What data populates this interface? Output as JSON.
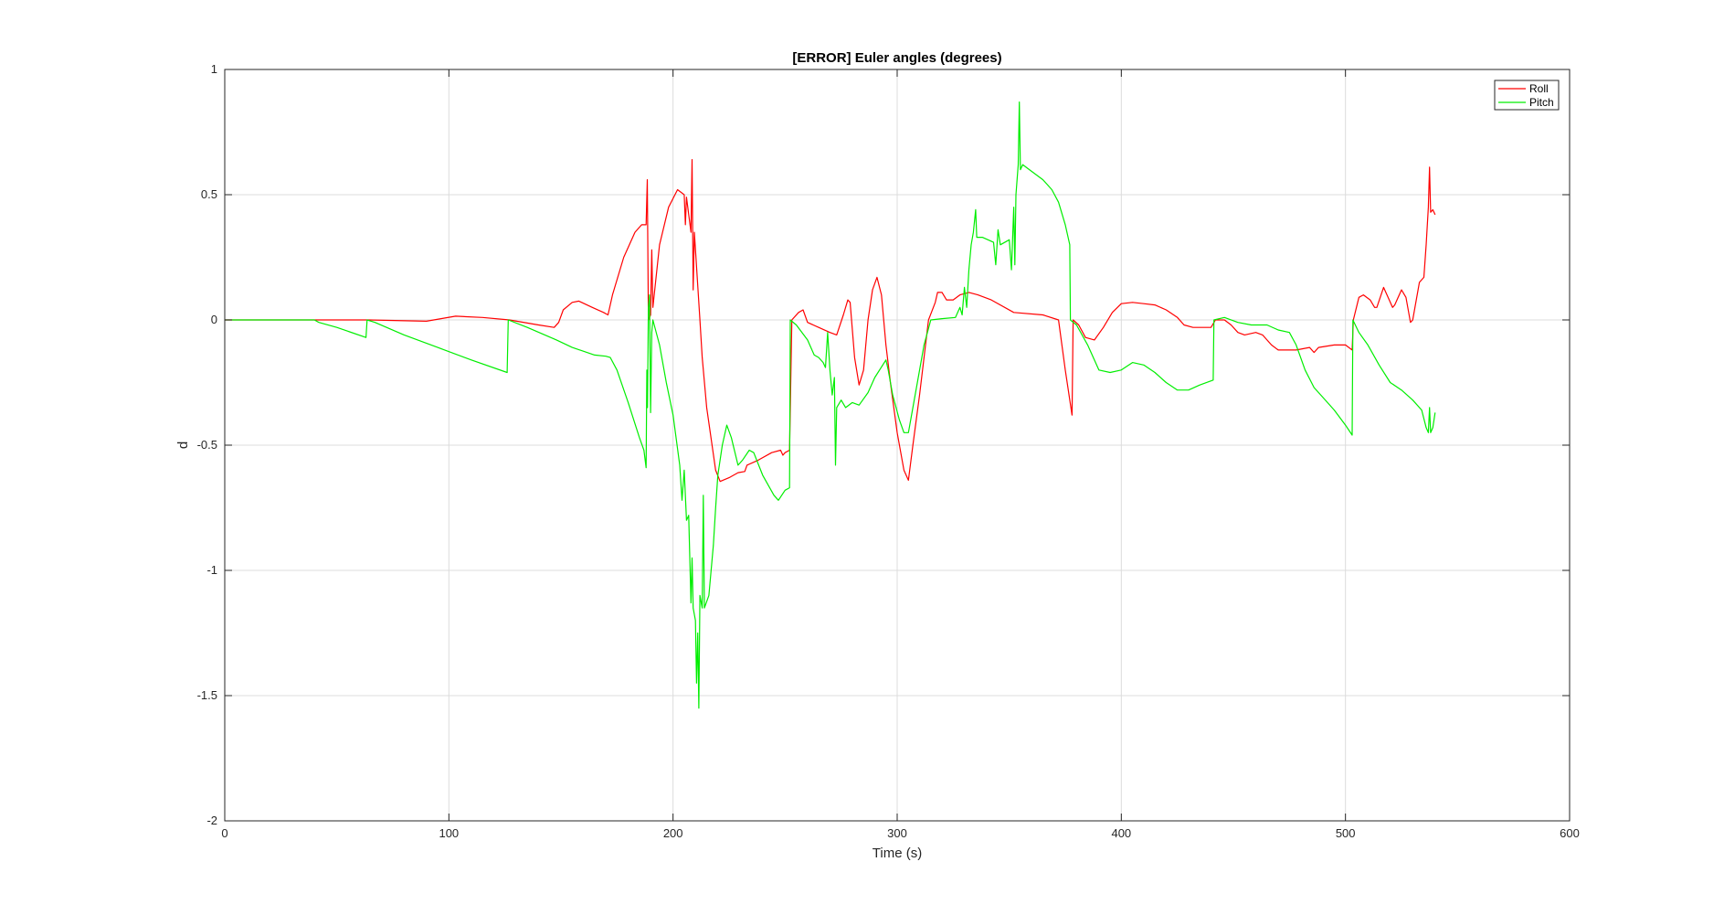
{
  "chart_data": {
    "type": "line",
    "title": "[ERROR] Euler angles (degrees)",
    "xlabel": "Time (s)",
    "ylabel": "d",
    "xlim": [
      0,
      600
    ],
    "ylim": [
      -2,
      1
    ],
    "xticks": [
      0,
      100,
      200,
      300,
      400,
      500,
      600
    ],
    "xtick_labels": [
      "0",
      "100",
      "200",
      "300",
      "400",
      "500",
      "600"
    ],
    "yticks": [
      1,
      0.5,
      0,
      -0.5,
      -1,
      -1.5,
      -2
    ],
    "ytick_labels": [
      "1",
      "0.5",
      "0",
      "-0.5",
      "-1",
      "-1.5",
      "-2"
    ],
    "grid": true,
    "legend_position": "top-right",
    "series": [
      {
        "name": "Roll",
        "color": "#ff0000",
        "points": [
          [
            0,
            0
          ],
          [
            40,
            0
          ],
          [
            64,
            0
          ],
          [
            90,
            -0.005
          ],
          [
            103,
            0.015
          ],
          [
            115,
            0.01
          ],
          [
            127,
            0
          ],
          [
            140,
            -0.02
          ],
          [
            147,
            -0.03
          ],
          [
            149,
            -0.01
          ],
          [
            151,
            0.04
          ],
          [
            155,
            0.07
          ],
          [
            158,
            0.075
          ],
          [
            164,
            0.05
          ],
          [
            169,
            0.03
          ],
          [
            171,
            0.02
          ],
          [
            173,
            0.1
          ],
          [
            178,
            0.25
          ],
          [
            183,
            0.35
          ],
          [
            186,
            0.38
          ],
          [
            188,
            0.38
          ],
          [
            188.5,
            0.56
          ],
          [
            189,
            0
          ],
          [
            190,
            0.02
          ],
          [
            190.5,
            0.28
          ],
          [
            191,
            0.05
          ],
          [
            194,
            0.3
          ],
          [
            198,
            0.45
          ],
          [
            202,
            0.52
          ],
          [
            205,
            0.5
          ],
          [
            205.5,
            0.38
          ],
          [
            206,
            0.49
          ],
          [
            208,
            0.35
          ],
          [
            208.5,
            0.64
          ],
          [
            209,
            0.12
          ],
          [
            209.5,
            0.35
          ],
          [
            212,
            0
          ],
          [
            213,
            -0.15
          ],
          [
            215,
            -0.35
          ],
          [
            219,
            -0.6
          ],
          [
            221,
            -0.645
          ],
          [
            225,
            -0.63
          ],
          [
            229,
            -0.61
          ],
          [
            232,
            -0.605
          ],
          [
            233,
            -0.58
          ],
          [
            238,
            -0.56
          ],
          [
            244,
            -0.53
          ],
          [
            248,
            -0.52
          ],
          [
            249,
            -0.54
          ],
          [
            250,
            -0.53
          ],
          [
            252,
            -0.52
          ],
          [
            253,
            0
          ],
          [
            256,
            0.03
          ],
          [
            258,
            0.04
          ],
          [
            260,
            -0.01
          ],
          [
            265,
            -0.03
          ],
          [
            270,
            -0.05
          ],
          [
            273,
            -0.06
          ],
          [
            276,
            0.02
          ],
          [
            278,
            0.08
          ],
          [
            279,
            0.07
          ],
          [
            281,
            -0.15
          ],
          [
            283,
            -0.26
          ],
          [
            285,
            -0.2
          ],
          [
            287,
            0
          ],
          [
            289,
            0.12
          ],
          [
            291,
            0.17
          ],
          [
            293,
            0.1
          ],
          [
            295,
            -0.1
          ],
          [
            297,
            -0.25
          ],
          [
            300,
            -0.45
          ],
          [
            303,
            -0.6
          ],
          [
            305,
            -0.64
          ],
          [
            307,
            -0.5
          ],
          [
            310,
            -0.3
          ],
          [
            314,
            0
          ],
          [
            317,
            0.07
          ],
          [
            318,
            0.11
          ],
          [
            320,
            0.11
          ],
          [
            322,
            0.08
          ],
          [
            325,
            0.08
          ],
          [
            328,
            0.1
          ],
          [
            332,
            0.11
          ],
          [
            336,
            0.1
          ],
          [
            342,
            0.08
          ],
          [
            352,
            0.03
          ],
          [
            365,
            0.02
          ],
          [
            372,
            0
          ],
          [
            375,
            -0.2
          ],
          [
            378,
            -0.38
          ],
          [
            378.5,
            0
          ],
          [
            381,
            -0.02
          ],
          [
            384,
            -0.07
          ],
          [
            388,
            -0.08
          ],
          [
            392,
            -0.03
          ],
          [
            396,
            0.03
          ],
          [
            400,
            0.065
          ],
          [
            405,
            0.07
          ],
          [
            410,
            0.065
          ],
          [
            415,
            0.06
          ],
          [
            420,
            0.04
          ],
          [
            425,
            0.01
          ],
          [
            428,
            -0.02
          ],
          [
            432,
            -0.03
          ],
          [
            440,
            -0.03
          ],
          [
            442,
            0
          ],
          [
            446,
            0
          ],
          [
            449,
            -0.02
          ],
          [
            452,
            -0.05
          ],
          [
            455,
            -0.06
          ],
          [
            460,
            -0.05
          ],
          [
            463,
            -0.06
          ],
          [
            467,
            -0.1
          ],
          [
            470,
            -0.12
          ],
          [
            478,
            -0.12
          ],
          [
            481,
            -0.115
          ],
          [
            484,
            -0.11
          ],
          [
            486,
            -0.13
          ],
          [
            488,
            -0.11
          ],
          [
            495,
            -0.1
          ],
          [
            500,
            -0.1
          ],
          [
            503,
            -0.12
          ],
          [
            503.5,
            0
          ],
          [
            506,
            0.09
          ],
          [
            508,
            0.1
          ],
          [
            511,
            0.08
          ],
          [
            513,
            0.05
          ],
          [
            514,
            0.05
          ],
          [
            517,
            0.13
          ],
          [
            519,
            0.09
          ],
          [
            521,
            0.05
          ],
          [
            522,
            0.06
          ],
          [
            525,
            0.12
          ],
          [
            527,
            0.09
          ],
          [
            529,
            -0.01
          ],
          [
            530,
            0
          ],
          [
            533,
            0.15
          ],
          [
            535,
            0.17
          ],
          [
            536,
            0.3
          ],
          [
            537,
            0.45
          ],
          [
            537.5,
            0.61
          ],
          [
            538,
            0.43
          ],
          [
            539,
            0.44
          ],
          [
            540,
            0.42
          ]
        ]
      },
      {
        "name": "Pitch",
        "color": "#00ee00",
        "points": [
          [
            0,
            0
          ],
          [
            40,
            0
          ],
          [
            42,
            -0.01
          ],
          [
            50,
            -0.03
          ],
          [
            63,
            -0.07
          ],
          [
            63.5,
            0
          ],
          [
            67,
            -0.01
          ],
          [
            80,
            -0.06
          ],
          [
            95,
            -0.11
          ],
          [
            110,
            -0.16
          ],
          [
            126,
            -0.21
          ],
          [
            126.5,
            0
          ],
          [
            135,
            -0.03
          ],
          [
            148,
            -0.08
          ],
          [
            155,
            -0.11
          ],
          [
            165,
            -0.14
          ],
          [
            170,
            -0.145
          ],
          [
            172,
            -0.15
          ],
          [
            175,
            -0.2
          ],
          [
            180,
            -0.33
          ],
          [
            185,
            -0.47
          ],
          [
            187,
            -0.52
          ],
          [
            188,
            -0.59
          ],
          [
            188.3,
            -0.2
          ],
          [
            188.6,
            -0.35
          ],
          [
            189,
            0.05
          ],
          [
            189.5,
            0.1
          ],
          [
            190,
            -0.37
          ],
          [
            190.5,
            -0.05
          ],
          [
            191,
            0
          ],
          [
            194,
            -0.1
          ],
          [
            197,
            -0.25
          ],
          [
            200,
            -0.38
          ],
          [
            203,
            -0.58
          ],
          [
            204,
            -0.72
          ],
          [
            205,
            -0.6
          ],
          [
            206,
            -0.8
          ],
          [
            207,
            -0.78
          ],
          [
            208,
            -1.13
          ],
          [
            208.5,
            -0.95
          ],
          [
            209,
            -1.15
          ],
          [
            210,
            -1.2
          ],
          [
            210.5,
            -1.45
          ],
          [
            211,
            -1.25
          ],
          [
            211.5,
            -1.55
          ],
          [
            212,
            -1.1
          ],
          [
            213,
            -1.15
          ],
          [
            213.5,
            -0.7
          ],
          [
            214,
            -1.15
          ],
          [
            216,
            -1.1
          ],
          [
            218,
            -0.9
          ],
          [
            219,
            -0.75
          ],
          [
            220,
            -0.62
          ],
          [
            222,
            -0.5
          ],
          [
            224,
            -0.42
          ],
          [
            226,
            -0.47
          ],
          [
            229,
            -0.58
          ],
          [
            231,
            -0.56
          ],
          [
            234,
            -0.52
          ],
          [
            236,
            -0.53
          ],
          [
            240,
            -0.62
          ],
          [
            245,
            -0.7
          ],
          [
            247,
            -0.72
          ],
          [
            250,
            -0.68
          ],
          [
            252,
            -0.67
          ],
          [
            252.3,
            0
          ],
          [
            255,
            -0.02
          ],
          [
            260,
            -0.08
          ],
          [
            263,
            -0.14
          ],
          [
            265,
            -0.15
          ],
          [
            267,
            -0.17
          ],
          [
            268,
            -0.19
          ],
          [
            269,
            -0.05
          ],
          [
            270,
            -0.2
          ],
          [
            271,
            -0.3
          ],
          [
            272,
            -0.23
          ],
          [
            272.5,
            -0.58
          ],
          [
            273,
            -0.35
          ],
          [
            275,
            -0.32
          ],
          [
            277,
            -0.35
          ],
          [
            280,
            -0.33
          ],
          [
            283,
            -0.34
          ],
          [
            287,
            -0.29
          ],
          [
            290,
            -0.23
          ],
          [
            295,
            -0.16
          ],
          [
            296,
            -0.2
          ],
          [
            298,
            -0.3
          ],
          [
            301,
            -0.4
          ],
          [
            303,
            -0.45
          ],
          [
            305,
            -0.45
          ],
          [
            307,
            -0.35
          ],
          [
            309,
            -0.25
          ],
          [
            312,
            -0.1
          ],
          [
            315,
            0
          ],
          [
            320,
            0.005
          ],
          [
            326,
            0.01
          ],
          [
            328,
            0.05
          ],
          [
            329,
            0.02
          ],
          [
            330,
            0.13
          ],
          [
            331,
            0.05
          ],
          [
            332,
            0.2
          ],
          [
            333,
            0.3
          ],
          [
            334,
            0.35
          ],
          [
            335,
            0.44
          ],
          [
            335.5,
            0.33
          ],
          [
            338,
            0.33
          ],
          [
            343,
            0.31
          ],
          [
            344,
            0.22
          ],
          [
            345,
            0.36
          ],
          [
            346,
            0.3
          ],
          [
            350,
            0.32
          ],
          [
            351,
            0.2
          ],
          [
            352,
            0.45
          ],
          [
            352.5,
            0.22
          ],
          [
            353,
            0.5
          ],
          [
            354,
            0.62
          ],
          [
            354.5,
            0.87
          ],
          [
            355,
            0.6
          ],
          [
            356,
            0.62
          ],
          [
            359,
            0.6
          ],
          [
            365,
            0.56
          ],
          [
            369,
            0.52
          ],
          [
            372,
            0.47
          ],
          [
            375,
            0.38
          ],
          [
            377,
            0.3
          ],
          [
            377.3,
            0
          ],
          [
            380,
            -0.02
          ],
          [
            385,
            -0.1
          ],
          [
            390,
            -0.2
          ],
          [
            395,
            -0.21
          ],
          [
            400,
            -0.2
          ],
          [
            405,
            -0.17
          ],
          [
            410,
            -0.18
          ],
          [
            415,
            -0.21
          ],
          [
            420,
            -0.25
          ],
          [
            425,
            -0.28
          ],
          [
            430,
            -0.28
          ],
          [
            435,
            -0.26
          ],
          [
            441,
            -0.24
          ],
          [
            441.3,
            0
          ],
          [
            446,
            0.01
          ],
          [
            452,
            -0.01
          ],
          [
            458,
            -0.02
          ],
          [
            465,
            -0.02
          ],
          [
            470,
            -0.04
          ],
          [
            475,
            -0.05
          ],
          [
            478,
            -0.1
          ],
          [
            482,
            -0.2
          ],
          [
            486,
            -0.27
          ],
          [
            490,
            -0.31
          ],
          [
            495,
            -0.36
          ],
          [
            500,
            -0.42
          ],
          [
            503,
            -0.46
          ],
          [
            503.3,
            0
          ],
          [
            506,
            -0.05
          ],
          [
            510,
            -0.1
          ],
          [
            515,
            -0.18
          ],
          [
            520,
            -0.25
          ],
          [
            525,
            -0.28
          ],
          [
            530,
            -0.32
          ],
          [
            534,
            -0.36
          ],
          [
            536,
            -0.43
          ],
          [
            537,
            -0.45
          ],
          [
            537.5,
            -0.35
          ],
          [
            538,
            -0.45
          ],
          [
            539,
            -0.43
          ],
          [
            540,
            -0.37
          ]
        ]
      }
    ]
  }
}
